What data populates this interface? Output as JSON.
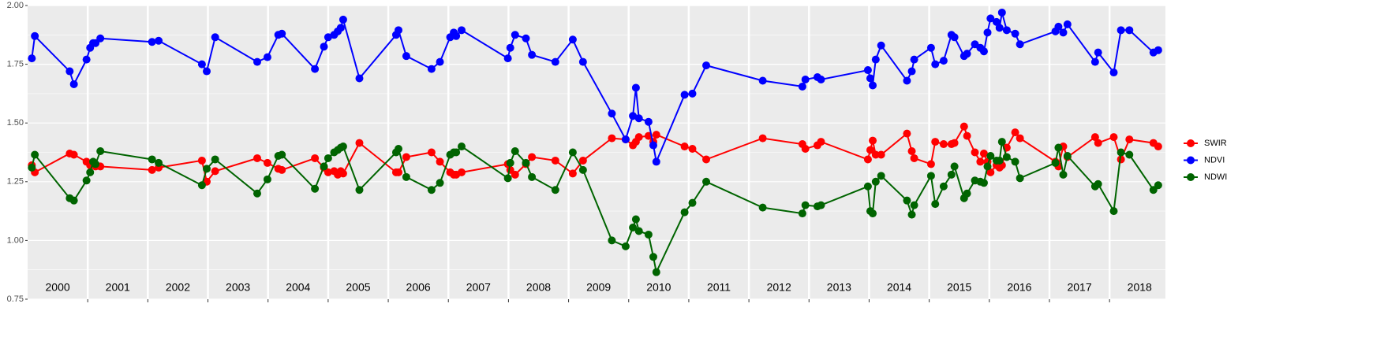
{
  "chart_data": {
    "type": "line",
    "x": [
      2000.07,
      2000.12,
      2000.7,
      2000.77,
      2000.98,
      2001.04,
      2001.09,
      2001.13,
      2001.21,
      2002.07,
      2002.18,
      2002.9,
      2002.98,
      2003.12,
      2003.82,
      2003.99,
      2004.17,
      2004.23,
      2004.78,
      2004.93,
      2005.0,
      2005.1,
      2005.16,
      2005.21,
      2005.25,
      2005.52,
      2006.13,
      2006.17,
      2006.3,
      2006.72,
      2006.86,
      2007.03,
      2007.09,
      2007.13,
      2007.22,
      2007.99,
      2008.03,
      2008.11,
      2008.29,
      2008.39,
      2008.78,
      2009.07,
      2009.24,
      2009.72,
      2009.95,
      2010.07,
      2010.12,
      2010.17,
      2010.33,
      2010.41,
      2010.46,
      2010.93,
      2011.06,
      2011.29,
      2012.23,
      2012.89,
      2012.94,
      2013.14,
      2013.2,
      2013.98,
      2014.02,
      2014.06,
      2014.11,
      2014.2,
      2014.63,
      2014.71,
      2014.75,
      2015.03,
      2015.1,
      2015.24,
      2015.37,
      2015.42,
      2015.58,
      2015.63,
      2015.76,
      2015.85,
      2015.91,
      2015.97,
      2016.02,
      2016.12,
      2016.17,
      2016.21,
      2016.29,
      2016.43,
      2016.51,
      2017.1,
      2017.15,
      2017.23,
      2017.3,
      2017.76,
      2017.81,
      2018.07,
      2018.19,
      2018.33,
      2018.73,
      2018.81
    ],
    "series": [
      {
        "name": "SWIR",
        "color": "#ff0000",
        "values": [
          1.32,
          1.29,
          1.37,
          1.365,
          1.335,
          1.32,
          1.33,
          1.315,
          1.315,
          1.3,
          1.31,
          1.34,
          1.25,
          1.295,
          1.35,
          1.33,
          1.305,
          1.3,
          1.35,
          1.31,
          1.29,
          1.295,
          1.28,
          1.295,
          1.285,
          1.415,
          1.29,
          1.29,
          1.355,
          1.375,
          1.335,
          1.29,
          1.28,
          1.28,
          1.29,
          1.325,
          1.3,
          1.28,
          1.325,
          1.355,
          1.34,
          1.285,
          1.34,
          1.435,
          1.43,
          1.405,
          1.42,
          1.44,
          1.445,
          1.42,
          1.45,
          1.4,
          1.39,
          1.345,
          1.435,
          1.41,
          1.39,
          1.405,
          1.42,
          1.345,
          1.385,
          1.425,
          1.365,
          1.365,
          1.455,
          1.38,
          1.35,
          1.325,
          1.42,
          1.41,
          1.41,
          1.415,
          1.485,
          1.445,
          1.375,
          1.335,
          1.37,
          1.335,
          1.29,
          1.32,
          1.31,
          1.32,
          1.395,
          1.46,
          1.435,
          1.335,
          1.315,
          1.4,
          1.355,
          1.44,
          1.415,
          1.44,
          1.345,
          1.43,
          1.415,
          1.4
        ]
      },
      {
        "name": "NDVI",
        "color": "#0000ff",
        "values": [
          1.775,
          1.87,
          1.72,
          1.665,
          1.77,
          1.82,
          1.84,
          1.84,
          1.86,
          1.845,
          1.85,
          1.75,
          1.72,
          1.865,
          1.76,
          1.78,
          1.875,
          1.88,
          1.73,
          1.825,
          1.865,
          1.875,
          1.89,
          1.905,
          1.94,
          1.69,
          1.875,
          1.895,
          1.785,
          1.73,
          1.76,
          1.865,
          1.885,
          1.87,
          1.895,
          1.775,
          1.82,
          1.875,
          1.86,
          1.79,
          1.76,
          1.855,
          1.76,
          1.54,
          1.43,
          1.53,
          1.65,
          1.52,
          1.505,
          1.405,
          1.335,
          1.62,
          1.625,
          1.745,
          1.68,
          1.655,
          1.685,
          1.695,
          1.685,
          1.725,
          1.69,
          1.66,
          1.77,
          1.83,
          1.68,
          1.72,
          1.77,
          1.82,
          1.75,
          1.765,
          1.875,
          1.865,
          1.785,
          1.795,
          1.835,
          1.82,
          1.805,
          1.885,
          1.945,
          1.93,
          1.905,
          1.97,
          1.895,
          1.88,
          1.835,
          1.89,
          1.91,
          1.885,
          1.92,
          1.76,
          1.8,
          1.715,
          1.895,
          1.895,
          1.8,
          1.81
        ]
      },
      {
        "name": "NDWI",
        "color": "#006400",
        "values": [
          1.31,
          1.365,
          1.18,
          1.17,
          1.255,
          1.29,
          1.335,
          1.325,
          1.38,
          1.345,
          1.33,
          1.235,
          1.305,
          1.345,
          1.2,
          1.26,
          1.36,
          1.365,
          1.22,
          1.315,
          1.35,
          1.375,
          1.385,
          1.395,
          1.4,
          1.215,
          1.375,
          1.39,
          1.27,
          1.215,
          1.245,
          1.365,
          1.375,
          1.375,
          1.4,
          1.265,
          1.33,
          1.38,
          1.33,
          1.27,
          1.215,
          1.375,
          1.3,
          1.0,
          0.975,
          1.055,
          1.09,
          1.04,
          1.025,
          0.93,
          0.865,
          1.12,
          1.16,
          1.25,
          1.14,
          1.115,
          1.15,
          1.145,
          1.15,
          1.23,
          1.125,
          1.115,
          1.25,
          1.275,
          1.17,
          1.11,
          1.15,
          1.275,
          1.155,
          1.23,
          1.28,
          1.315,
          1.18,
          1.2,
          1.255,
          1.25,
          1.245,
          1.315,
          1.36,
          1.34,
          1.34,
          1.42,
          1.355,
          1.335,
          1.265,
          1.33,
          1.395,
          1.28,
          1.36,
          1.23,
          1.24,
          1.125,
          1.375,
          1.365,
          1.215,
          1.235
        ]
      }
    ],
    "xlim": [
      2000.0,
      2018.93
    ],
    "xticks": [
      {
        "value": 2000.5,
        "label": "2000"
      },
      {
        "value": 2001.5,
        "label": "2001"
      },
      {
        "value": 2002.5,
        "label": "2002"
      },
      {
        "value": 2003.5,
        "label": "2003"
      },
      {
        "value": 2004.5,
        "label": "2004"
      },
      {
        "value": 2005.5,
        "label": "2005"
      },
      {
        "value": 2006.5,
        "label": "2006"
      },
      {
        "value": 2007.5,
        "label": "2007"
      },
      {
        "value": 2008.5,
        "label": "2008"
      },
      {
        "value": 2009.5,
        "label": "2009"
      },
      {
        "value": 2010.5,
        "label": "2010"
      },
      {
        "value": 2011.5,
        "label": "2011"
      },
      {
        "value": 2012.5,
        "label": "2012"
      },
      {
        "value": 2013.5,
        "label": "2013"
      },
      {
        "value": 2014.5,
        "label": "2014"
      },
      {
        "value": 2015.5,
        "label": "2015"
      },
      {
        "value": 2016.5,
        "label": "2016"
      },
      {
        "value": 2017.5,
        "label": "2017"
      },
      {
        "value": 2018.5,
        "label": "2018"
      }
    ],
    "xgridlines": [
      2001,
      2002,
      2003,
      2004,
      2005,
      2006,
      2007,
      2008,
      2009,
      2010,
      2011,
      2012,
      2013,
      2014,
      2015,
      2016,
      2017,
      2018
    ],
    "ylim": [
      0.75,
      2.0
    ],
    "yticks": [
      0.75,
      {
        "value": 1,
        "label": "1.00"
      },
      1.25,
      {
        "value": 1.5,
        "label": "1.50"
      },
      1.75,
      {
        "value": 2,
        "label": "2.00"
      }
    ],
    "grid": true,
    "legend": "right"
  }
}
